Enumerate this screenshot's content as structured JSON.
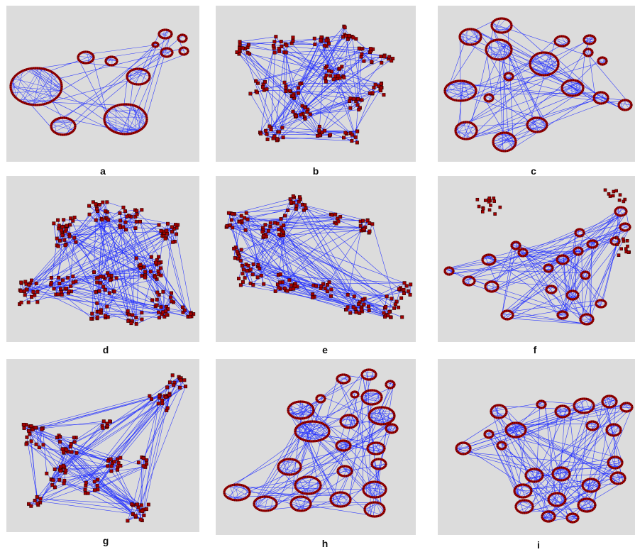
{
  "panels": [
    {
      "label": "a"
    },
    {
      "label": "b"
    },
    {
      "label": "c"
    },
    {
      "label": "d"
    },
    {
      "label": "e"
    },
    {
      "label": "f"
    },
    {
      "label": "g"
    },
    {
      "label": "h"
    },
    {
      "label": "i"
    }
  ],
  "colors": {
    "background": "#dcdcdc",
    "edge": "#1f2bff",
    "node": "#a40000",
    "node_outline": "#2a0000"
  }
}
